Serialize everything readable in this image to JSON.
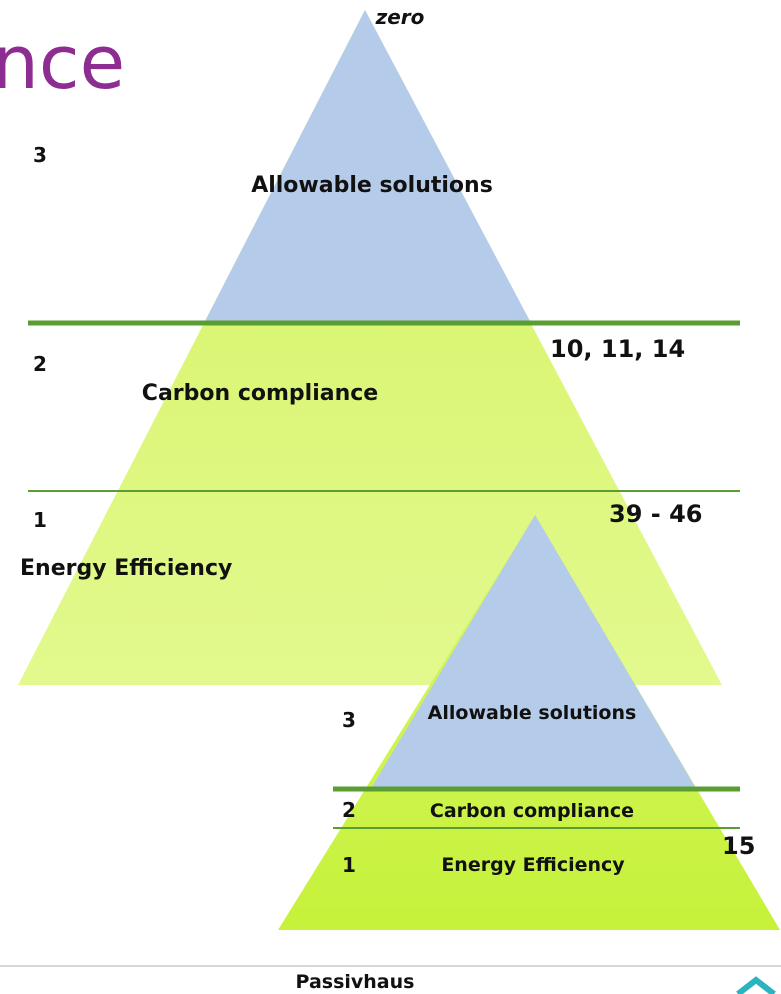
{
  "header": {
    "title_fragment": "nce"
  },
  "pyramid_large": {
    "top_label": "zero",
    "levels": [
      {
        "number": "3",
        "label": "Allowable solutions"
      },
      {
        "number": "2",
        "label": "Carbon compliance"
      },
      {
        "number": "1",
        "label": "Energy Efficiency"
      }
    ],
    "figures": [
      "10, 11, 14",
      "39 - 46"
    ]
  },
  "pyramid_small": {
    "levels": [
      {
        "number": "3",
        "label": "Allowable solutions"
      },
      {
        "number": "2",
        "label": "Carbon compliance"
      },
      {
        "number": "1",
        "label": "Energy Efficiency"
      }
    ],
    "figure": "15"
  },
  "footer": {
    "label": "Passivhaus"
  }
}
